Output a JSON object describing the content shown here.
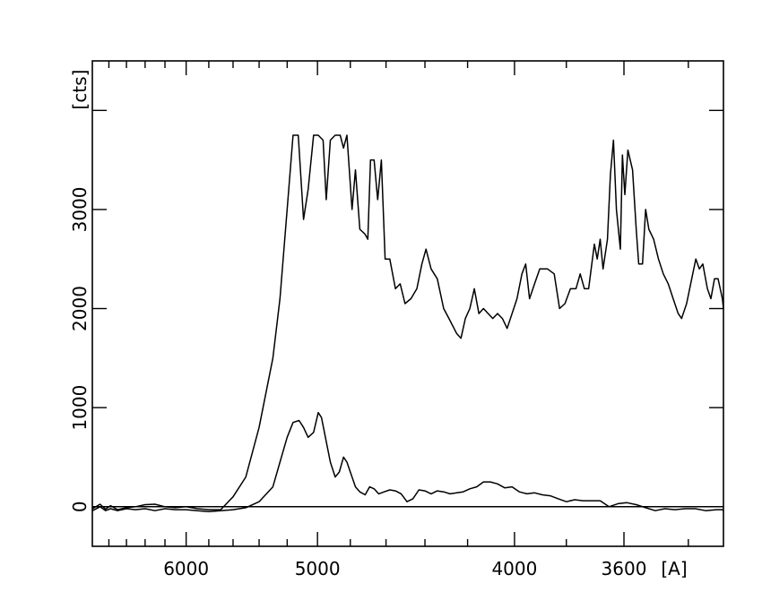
{
  "chart_data": {
    "type": "line",
    "title": "",
    "xlabel": "[A]",
    "ylabel": "[cts]",
    "x_scale": "reciprocal",
    "xlim": [
      7000,
      3300
    ],
    "ylim": [
      -400,
      4500
    ],
    "grid": false,
    "legend": "none",
    "xticks": [
      {
        "value": 6000,
        "label": "6000"
      },
      {
        "value": 5000,
        "label": "5000"
      },
      {
        "value": 4000,
        "label": "4000"
      },
      {
        "value": 3600,
        "label": "3600"
      }
    ],
    "xminorticks": [
      6800,
      6600,
      6400,
      6200,
      5800,
      5600,
      5400,
      5200,
      4800,
      4600,
      4400,
      4200,
      3800,
      3400
    ],
    "yticks": [
      {
        "value": 0,
        "label": "0"
      },
      {
        "value": 1000,
        "label": "1000"
      },
      {
        "value": 2000,
        "label": "2000"
      },
      {
        "value": 3000,
        "label": "3000"
      }
    ],
    "yminorticks": [
      4000
    ],
    "zero_line": 0,
    "series": [
      {
        "stroke": "#000000",
        "points": [
          [
            6998,
            -20
          ],
          [
            6905,
            25
          ],
          [
            6840,
            -25
          ],
          [
            6780,
            10
          ],
          [
            6700,
            -30
          ],
          [
            6600,
            -10
          ],
          [
            6500,
            0
          ],
          [
            6400,
            20
          ],
          [
            6300,
            25
          ],
          [
            6200,
            0
          ],
          [
            6100,
            -10
          ],
          [
            6000,
            0
          ],
          [
            5900,
            -20
          ],
          [
            5800,
            -30
          ],
          [
            5700,
            -30
          ],
          [
            5600,
            100
          ],
          [
            5500,
            300
          ],
          [
            5400,
            800
          ],
          [
            5300,
            1500
          ],
          [
            5250,
            2100
          ],
          [
            5200,
            3000
          ],
          [
            5160,
            3750
          ],
          [
            5125,
            3750
          ],
          [
            5090,
            2900
          ],
          [
            5060,
            3200
          ],
          [
            5025,
            3750
          ],
          [
            4995,
            3750
          ],
          [
            4965,
            3700
          ],
          [
            4945,
            3100
          ],
          [
            4920,
            3700
          ],
          [
            4890,
            3750
          ],
          [
            4860,
            3750
          ],
          [
            4840,
            3620
          ],
          [
            4820,
            3750
          ],
          [
            4790,
            3000
          ],
          [
            4770,
            3400
          ],
          [
            4745,
            2800
          ],
          [
            4715,
            2750
          ],
          [
            4700,
            2700
          ],
          [
            4685,
            3500
          ],
          [
            4665,
            3500
          ],
          [
            4645,
            3100
          ],
          [
            4625,
            3500
          ],
          [
            4605,
            2500
          ],
          [
            4580,
            2500
          ],
          [
            4550,
            2200
          ],
          [
            4525,
            2250
          ],
          [
            4500,
            2050
          ],
          [
            4470,
            2100
          ],
          [
            4440,
            2200
          ],
          [
            4415,
            2450
          ],
          [
            4395,
            2600
          ],
          [
            4370,
            2400
          ],
          [
            4340,
            2300
          ],
          [
            4310,
            2000
          ],
          [
            4285,
            1900
          ],
          [
            4250,
            1750
          ],
          [
            4230,
            1700
          ],
          [
            4210,
            1900
          ],
          [
            4190,
            2000
          ],
          [
            4170,
            2200
          ],
          [
            4150,
            1950
          ],
          [
            4130,
            2000
          ],
          [
            4110,
            1950
          ],
          [
            4090,
            1900
          ],
          [
            4070,
            1950
          ],
          [
            4050,
            1900
          ],
          [
            4030,
            1800
          ],
          [
            4010,
            1950
          ],
          [
            3990,
            2100
          ],
          [
            3970,
            2350
          ],
          [
            3955,
            2450
          ],
          [
            3940,
            2100
          ],
          [
            3920,
            2250
          ],
          [
            3900,
            2400
          ],
          [
            3870,
            2400
          ],
          [
            3845,
            2350
          ],
          [
            3825,
            2000
          ],
          [
            3805,
            2050
          ],
          [
            3785,
            2200
          ],
          [
            3765,
            2200
          ],
          [
            3750,
            2350
          ],
          [
            3735,
            2200
          ],
          [
            3720,
            2200
          ],
          [
            3700,
            2650
          ],
          [
            3690,
            2500
          ],
          [
            3680,
            2700
          ],
          [
            3670,
            2400
          ],
          [
            3655,
            2700
          ],
          [
            3645,
            3350
          ],
          [
            3635,
            3700
          ],
          [
            3625,
            3000
          ],
          [
            3612,
            2600
          ],
          [
            3605,
            3550
          ],
          [
            3597,
            3150
          ],
          [
            3587,
            3600
          ],
          [
            3572,
            3400
          ],
          [
            3560,
            2800
          ],
          [
            3552,
            2450
          ],
          [
            3540,
            2450
          ],
          [
            3530,
            3000
          ],
          [
            3520,
            2800
          ],
          [
            3505,
            2700
          ],
          [
            3490,
            2500
          ],
          [
            3475,
            2350
          ],
          [
            3460,
            2250
          ],
          [
            3445,
            2100
          ],
          [
            3430,
            1950
          ],
          [
            3420,
            1900
          ],
          [
            3405,
            2050
          ],
          [
            3390,
            2300
          ],
          [
            3378,
            2500
          ],
          [
            3368,
            2400
          ],
          [
            3358,
            2450
          ],
          [
            3345,
            2200
          ],
          [
            3335,
            2100
          ],
          [
            3325,
            2300
          ],
          [
            3315,
            2300
          ],
          [
            3303,
            2100
          ],
          [
            3300,
            2000
          ]
        ]
      },
      {
        "stroke": "#000000",
        "points": [
          [
            6998,
            -40
          ],
          [
            6905,
            0
          ],
          [
            6840,
            -40
          ],
          [
            6780,
            -20
          ],
          [
            6700,
            -40
          ],
          [
            6600,
            -20
          ],
          [
            6500,
            -30
          ],
          [
            6400,
            -20
          ],
          [
            6300,
            -40
          ],
          [
            6200,
            -20
          ],
          [
            6100,
            -30
          ],
          [
            6000,
            -30
          ],
          [
            5900,
            -40
          ],
          [
            5800,
            -50
          ],
          [
            5700,
            -40
          ],
          [
            5600,
            -30
          ],
          [
            5500,
            -10
          ],
          [
            5400,
            50
          ],
          [
            5300,
            200
          ],
          [
            5250,
            450
          ],
          [
            5200,
            700
          ],
          [
            5160,
            850
          ],
          [
            5120,
            870
          ],
          [
            5090,
            800
          ],
          [
            5060,
            700
          ],
          [
            5025,
            750
          ],
          [
            4995,
            950
          ],
          [
            4975,
            900
          ],
          [
            4950,
            700
          ],
          [
            4920,
            450
          ],
          [
            4890,
            300
          ],
          [
            4865,
            350
          ],
          [
            4840,
            500
          ],
          [
            4820,
            450
          ],
          [
            4790,
            300
          ],
          [
            4770,
            200
          ],
          [
            4745,
            150
          ],
          [
            4715,
            120
          ],
          [
            4690,
            200
          ],
          [
            4665,
            180
          ],
          [
            4640,
            130
          ],
          [
            4610,
            150
          ],
          [
            4580,
            170
          ],
          [
            4550,
            160
          ],
          [
            4520,
            130
          ],
          [
            4490,
            50
          ],
          [
            4460,
            80
          ],
          [
            4430,
            170
          ],
          [
            4400,
            160
          ],
          [
            4370,
            130
          ],
          [
            4340,
            160
          ],
          [
            4310,
            150
          ],
          [
            4280,
            130
          ],
          [
            4250,
            140
          ],
          [
            4220,
            150
          ],
          [
            4190,
            180
          ],
          [
            4160,
            200
          ],
          [
            4130,
            250
          ],
          [
            4100,
            250
          ],
          [
            4070,
            230
          ],
          [
            4040,
            190
          ],
          [
            4010,
            200
          ],
          [
            3980,
            150
          ],
          [
            3950,
            130
          ],
          [
            3920,
            140
          ],
          [
            3890,
            120
          ],
          [
            3860,
            110
          ],
          [
            3830,
            80
          ],
          [
            3800,
            50
          ],
          [
            3770,
            70
          ],
          [
            3740,
            60
          ],
          [
            3710,
            60
          ],
          [
            3680,
            60
          ],
          [
            3650,
            0
          ],
          [
            3620,
            30
          ],
          [
            3590,
            40
          ],
          [
            3560,
            20
          ],
          [
            3530,
            -10
          ],
          [
            3500,
            -40
          ],
          [
            3470,
            -20
          ],
          [
            3440,
            -30
          ],
          [
            3410,
            -20
          ],
          [
            3380,
            -20
          ],
          [
            3350,
            -40
          ],
          [
            3320,
            -30
          ],
          [
            3303,
            -30
          ],
          [
            3300,
            -40
          ]
        ]
      }
    ]
  }
}
